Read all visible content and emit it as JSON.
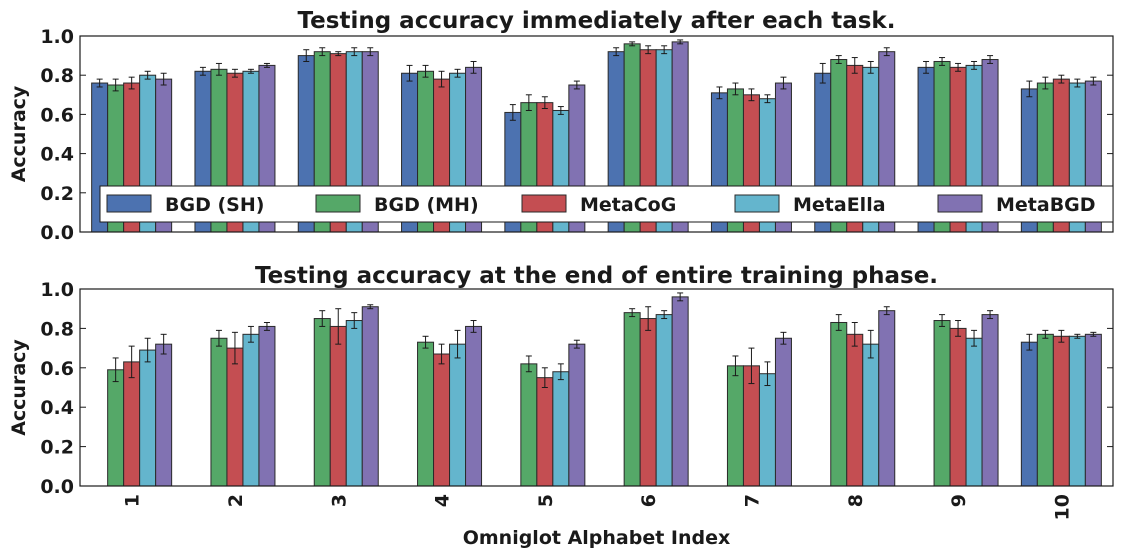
{
  "chart_data": [
    {
      "type": "bar",
      "title": "Testing accuracy immediately after each task.",
      "ylabel": "Accuracy",
      "xlabel": "",
      "ylim": [
        0,
        1.0
      ],
      "yticks": [
        "0.0",
        "0.2",
        "0.4",
        "0.6",
        "0.8",
        "1.0"
      ],
      "categories": [
        "1",
        "2",
        "3",
        "4",
        "5",
        "6",
        "7",
        "8",
        "9",
        "10"
      ],
      "legend": {
        "placement": "bottom-inside",
        "columns": 5
      },
      "series": [
        {
          "name": "BGD (SH)",
          "color": "#4c72b0",
          "values": [
            0.76,
            0.82,
            0.9,
            0.81,
            0.61,
            0.92,
            0.71,
            0.81,
            0.84,
            0.73
          ],
          "errors": [
            0.02,
            0.02,
            0.03,
            0.04,
            0.04,
            0.02,
            0.03,
            0.05,
            0.03,
            0.04
          ]
        },
        {
          "name": "BGD (MH)",
          "color": "#55a868",
          "values": [
            0.75,
            0.83,
            0.92,
            0.82,
            0.66,
            0.96,
            0.73,
            0.88,
            0.87,
            0.76
          ],
          "errors": [
            0.03,
            0.03,
            0.02,
            0.03,
            0.04,
            0.01,
            0.03,
            0.02,
            0.02,
            0.03
          ]
        },
        {
          "name": "MetaCoG",
          "color": "#c44e52",
          "values": [
            0.76,
            0.81,
            0.91,
            0.78,
            0.66,
            0.93,
            0.7,
            0.85,
            0.84,
            0.78
          ],
          "errors": [
            0.03,
            0.02,
            0.01,
            0.04,
            0.03,
            0.02,
            0.03,
            0.04,
            0.02,
            0.02
          ]
        },
        {
          "name": "MetaElla",
          "color": "#64b5cd",
          "values": [
            0.8,
            0.82,
            0.92,
            0.81,
            0.62,
            0.93,
            0.68,
            0.84,
            0.85,
            0.76
          ],
          "errors": [
            0.02,
            0.01,
            0.02,
            0.02,
            0.02,
            0.02,
            0.02,
            0.03,
            0.02,
            0.02
          ]
        },
        {
          "name": "MetaBGD",
          "color": "#8172b2",
          "values": [
            0.78,
            0.85,
            0.92,
            0.84,
            0.75,
            0.97,
            0.76,
            0.92,
            0.88,
            0.77
          ],
          "errors": [
            0.03,
            0.01,
            0.02,
            0.03,
            0.02,
            0.01,
            0.03,
            0.02,
            0.02,
            0.02
          ]
        }
      ]
    },
    {
      "type": "bar",
      "title": "Testing accuracy at the end of entire training phase.",
      "ylabel": "Accuracy",
      "xlabel": "Omniglot Alphabet Index",
      "ylim": [
        0,
        1.0
      ],
      "yticks": [
        "0.0",
        "0.2",
        "0.4",
        "0.6",
        "0.8",
        "1.0"
      ],
      "categories": [
        "1",
        "2",
        "3",
        "4",
        "5",
        "6",
        "7",
        "8",
        "9",
        "10"
      ],
      "series": [
        {
          "name": "BGD (SH)",
          "color": "#4c72b0",
          "values": [
            0,
            0,
            0,
            0,
            0,
            0,
            0,
            0,
            0,
            0.73
          ],
          "errors": [
            0,
            0,
            0,
            0,
            0,
            0,
            0,
            0,
            0,
            0.04
          ]
        },
        {
          "name": "BGD (MH)",
          "color": "#55a868",
          "values": [
            0.59,
            0.75,
            0.85,
            0.73,
            0.62,
            0.88,
            0.61,
            0.83,
            0.84,
            0.77
          ],
          "errors": [
            0.06,
            0.04,
            0.04,
            0.03,
            0.04,
            0.02,
            0.05,
            0.04,
            0.03,
            0.02
          ]
        },
        {
          "name": "MetaCoG",
          "color": "#c44e52",
          "values": [
            0.63,
            0.7,
            0.81,
            0.67,
            0.55,
            0.85,
            0.61,
            0.77,
            0.8,
            0.76
          ],
          "errors": [
            0.08,
            0.08,
            0.09,
            0.05,
            0.05,
            0.06,
            0.09,
            0.06,
            0.04,
            0.03
          ]
        },
        {
          "name": "MetaElla",
          "color": "#64b5cd",
          "values": [
            0.69,
            0.77,
            0.84,
            0.72,
            0.58,
            0.87,
            0.57,
            0.72,
            0.75,
            0.76
          ],
          "errors": [
            0.06,
            0.04,
            0.04,
            0.07,
            0.04,
            0.02,
            0.06,
            0.07,
            0.04,
            0.01
          ]
        },
        {
          "name": "MetaBGD",
          "color": "#8172b2",
          "values": [
            0.72,
            0.81,
            0.91,
            0.81,
            0.72,
            0.96,
            0.75,
            0.89,
            0.87,
            0.77
          ],
          "errors": [
            0.05,
            0.02,
            0.01,
            0.03,
            0.02,
            0.02,
            0.03,
            0.02,
            0.02,
            0.01
          ]
        }
      ]
    }
  ]
}
